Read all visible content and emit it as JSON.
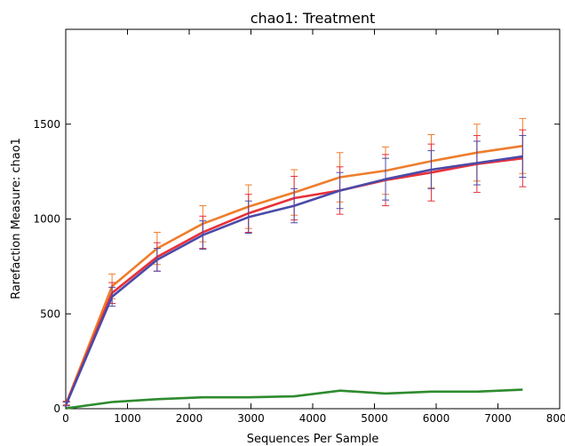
{
  "chart_data": {
    "type": "line",
    "title": "chao1: Treatment",
    "xlabel": "Sequences Per Sample",
    "ylabel": "Rarefaction Measure: chao1",
    "xlim": [
      0,
      8000
    ],
    "ylim": [
      0,
      2000
    ],
    "xticks": [
      0,
      1000,
      2000,
      3000,
      4000,
      5000,
      6000,
      7000,
      8000
    ],
    "yticks": [
      0,
      500,
      1000,
      1500
    ],
    "grid": false,
    "x": [
      10,
      750,
      1480,
      2220,
      2960,
      3700,
      4440,
      5180,
      5920,
      6660,
      7400
    ],
    "series": [
      {
        "color": "#ee7d2c",
        "values": [
          30,
          645,
          845,
          975,
          1065,
          1140,
          1220,
          1255,
          1305,
          1350,
          1385
        ],
        "errors": [
          10,
          65,
          85,
          95,
          115,
          120,
          130,
          125,
          140,
          150,
          145
        ]
      },
      {
        "color": "#e8303a",
        "values": [
          28,
          610,
          800,
          930,
          1030,
          1110,
          1150,
          1205,
          1245,
          1290,
          1320
        ],
        "errors": [
          10,
          55,
          75,
          85,
          100,
          115,
          125,
          135,
          150,
          150,
          150
        ]
      },
      {
        "color": "#4a4aa8",
        "values": [
          25,
          590,
          785,
          915,
          1010,
          1070,
          1150,
          1210,
          1260,
          1295,
          1330
        ],
        "errors": [
          10,
          50,
          60,
          75,
          85,
          90,
          95,
          110,
          100,
          115,
          110
        ]
      },
      {
        "color": "#2e8b2e",
        "values": [
          2,
          35,
          50,
          60,
          60,
          65,
          95,
          80,
          90,
          90,
          100
        ],
        "errors": [
          0,
          0,
          0,
          0,
          0,
          0,
          0,
          0,
          0,
          0,
          0
        ]
      }
    ]
  }
}
